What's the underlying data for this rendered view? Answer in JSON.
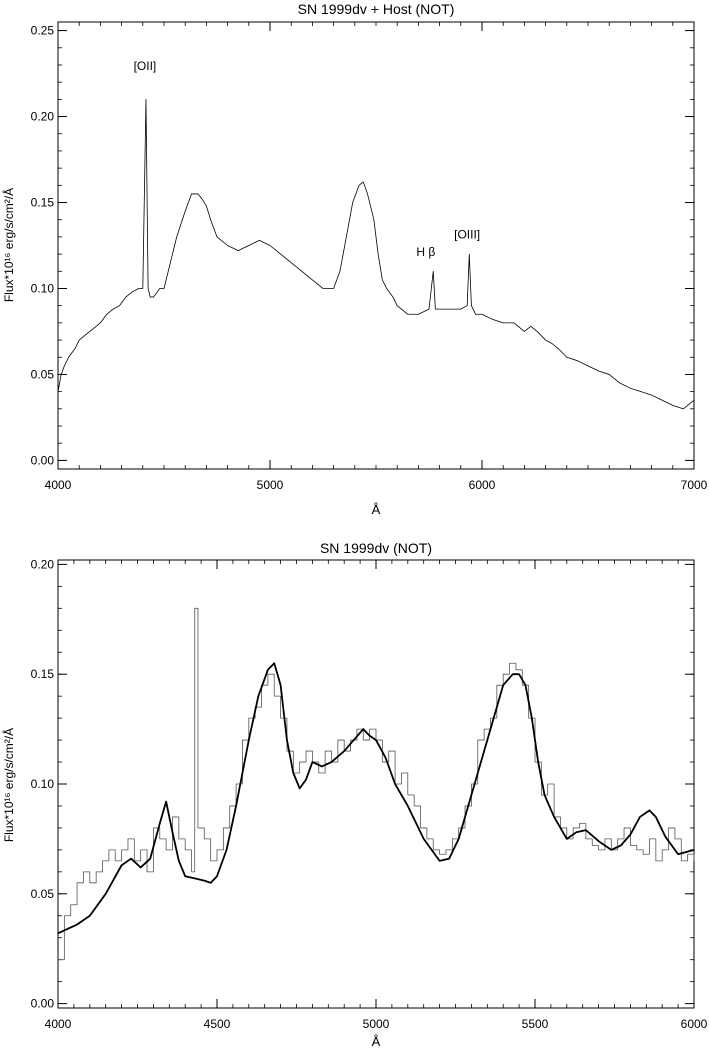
{
  "chart_data": [
    {
      "type": "line",
      "title": "SN 1999dv + Host (NOT)",
      "xlabel": "Å",
      "ylabel": "Flux*10¹⁶ erg/s/cm²/Å",
      "xlim": [
        4000,
        7000
      ],
      "ylim": [
        -0.005,
        0.255
      ],
      "xticks": [
        4000,
        5000,
        6000,
        7000
      ],
      "xtick_labels": [
        "4000",
        "5000",
        "6000",
        "7000"
      ],
      "yticks": [
        0.0,
        0.05,
        0.1,
        0.15,
        0.2,
        0.25
      ],
      "ytick_labels": [
        "0.00",
        "0.05",
        "0.10",
        "0.15",
        "0.20",
        "0.25"
      ],
      "grid": false,
      "annotations": [
        {
          "text": "[OII]",
          "x": 4410,
          "y": 0.227
        },
        {
          "text": "H β",
          "x": 5735,
          "y": 0.119
        },
        {
          "text": "[OIII]",
          "x": 5930,
          "y": 0.129
        }
      ],
      "series": [
        {
          "style": "thin-noisy",
          "x": [
            4000,
            4015,
            4030,
            4050,
            4080,
            4100,
            4120,
            4150,
            4180,
            4200,
            4230,
            4260,
            4290,
            4320,
            4350,
            4380,
            4400,
            4415,
            4425,
            4435,
            4450,
            4480,
            4500,
            4530,
            4560,
            4600,
            4630,
            4660,
            4680,
            4700,
            4720,
            4750,
            4800,
            4850,
            4900,
            4950,
            5000,
            5050,
            5100,
            5150,
            5200,
            5250,
            5300,
            5330,
            5360,
            5390,
            5420,
            5440,
            5460,
            5490,
            5510,
            5530,
            5550,
            5580,
            5600,
            5650,
            5700,
            5750,
            5770,
            5780,
            5800,
            5850,
            5900,
            5930,
            5940,
            5950,
            5970,
            6000,
            6050,
            6100,
            6150,
            6200,
            6230,
            6260,
            6300,
            6330,
            6360,
            6400,
            6450,
            6500,
            6550,
            6600,
            6650,
            6700,
            6750,
            6800,
            6850,
            6900,
            6950,
            7000
          ],
          "y": [
            0.04,
            0.05,
            0.055,
            0.06,
            0.065,
            0.07,
            0.072,
            0.075,
            0.078,
            0.08,
            0.085,
            0.088,
            0.09,
            0.095,
            0.098,
            0.1,
            0.1,
            0.21,
            0.1,
            0.095,
            0.095,
            0.1,
            0.1,
            0.115,
            0.13,
            0.145,
            0.155,
            0.155,
            0.152,
            0.148,
            0.14,
            0.13,
            0.125,
            0.122,
            0.125,
            0.128,
            0.125,
            0.12,
            0.115,
            0.11,
            0.105,
            0.1,
            0.1,
            0.11,
            0.13,
            0.15,
            0.16,
            0.162,
            0.155,
            0.14,
            0.12,
            0.105,
            0.1,
            0.095,
            0.09,
            0.085,
            0.085,
            0.088,
            0.11,
            0.088,
            0.088,
            0.088,
            0.088,
            0.09,
            0.12,
            0.09,
            0.085,
            0.085,
            0.082,
            0.08,
            0.08,
            0.075,
            0.078,
            0.075,
            0.07,
            0.068,
            0.065,
            0.06,
            0.058,
            0.055,
            0.052,
            0.05,
            0.045,
            0.042,
            0.04,
            0.038,
            0.035,
            0.032,
            0.03,
            0.035
          ]
        }
      ]
    },
    {
      "type": "line",
      "title": "SN 1999dv (NOT)",
      "xlabel": "Å",
      "ylabel": "Flux*10¹⁶ erg/s/cm²/Å",
      "xlim": [
        4000,
        6000
      ],
      "ylim": [
        -0.002,
        0.202
      ],
      "xticks": [
        4000,
        4500,
        5000,
        5500,
        6000
      ],
      "xtick_labels": [
        "4000",
        "4500",
        "5000",
        "5500",
        "6000"
      ],
      "yticks": [
        0.0,
        0.05,
        0.1,
        0.15,
        0.2
      ],
      "ytick_labels": [
        "0.00",
        "0.05",
        "0.10",
        "0.15",
        "0.20"
      ],
      "grid": false,
      "series": [
        {
          "style": "thin-histogram",
          "x": [
            4000,
            4020,
            4040,
            4060,
            4080,
            4100,
            4120,
            4140,
            4160,
            4180,
            4200,
            4220,
            4240,
            4260,
            4280,
            4300,
            4320,
            4340,
            4360,
            4380,
            4400,
            4420,
            4430,
            4440,
            4460,
            4480,
            4500,
            4520,
            4540,
            4560,
            4580,
            4600,
            4620,
            4640,
            4660,
            4680,
            4700,
            4720,
            4740,
            4760,
            4780,
            4800,
            4820,
            4840,
            4860,
            4880,
            4900,
            4920,
            4940,
            4960,
            4980,
            5000,
            5020,
            5040,
            5060,
            5080,
            5100,
            5120,
            5140,
            5160,
            5180,
            5200,
            5220,
            5240,
            5260,
            5280,
            5300,
            5320,
            5340,
            5360,
            5380,
            5400,
            5420,
            5440,
            5460,
            5480,
            5500,
            5520,
            5540,
            5560,
            5580,
            5600,
            5620,
            5640,
            5660,
            5680,
            5700,
            5720,
            5740,
            5760,
            5780,
            5800,
            5820,
            5840,
            5860,
            5880,
            5900,
            5920,
            5940,
            5960,
            5980,
            6000
          ],
          "y": [
            0.02,
            0.04,
            0.045,
            0.055,
            0.06,
            0.055,
            0.06,
            0.065,
            0.07,
            0.065,
            0.07,
            0.075,
            0.065,
            0.07,
            0.06,
            0.08,
            0.075,
            0.07,
            0.085,
            0.075,
            0.07,
            0.06,
            0.18,
            0.08,
            0.075,
            0.065,
            0.07,
            0.08,
            0.09,
            0.1,
            0.12,
            0.13,
            0.135,
            0.145,
            0.15,
            0.14,
            0.13,
            0.115,
            0.105,
            0.11,
            0.115,
            0.11,
            0.105,
            0.115,
            0.11,
            0.12,
            0.115,
            0.12,
            0.125,
            0.12,
            0.125,
            0.12,
            0.11,
            0.115,
            0.1,
            0.105,
            0.095,
            0.09,
            0.08,
            0.075,
            0.07,
            0.068,
            0.07,
            0.075,
            0.08,
            0.09,
            0.1,
            0.12,
            0.125,
            0.13,
            0.145,
            0.15,
            0.155,
            0.152,
            0.145,
            0.13,
            0.11,
            0.095,
            0.1,
            0.085,
            0.08,
            0.075,
            0.08,
            0.082,
            0.075,
            0.072,
            0.07,
            0.075,
            0.07,
            0.075,
            0.08,
            0.072,
            0.07,
            0.068,
            0.075,
            0.065,
            0.07,
            0.08,
            0.075,
            0.065,
            0.068,
            0.065
          ]
        },
        {
          "style": "thick-smooth",
          "x": [
            4000,
            4030,
            4060,
            4100,
            4150,
            4200,
            4230,
            4260,
            4290,
            4320,
            4340,
            4360,
            4380,
            4400,
            4430,
            4460,
            4480,
            4500,
            4530,
            4560,
            4600,
            4630,
            4660,
            4680,
            4700,
            4720,
            4740,
            4760,
            4780,
            4800,
            4830,
            4860,
            4900,
            4930,
            4960,
            4980,
            5000,
            5030,
            5060,
            5100,
            5150,
            5200,
            5230,
            5260,
            5300,
            5350,
            5400,
            5430,
            5450,
            5470,
            5490,
            5510,
            5530,
            5560,
            5600,
            5630,
            5660,
            5700,
            5740,
            5770,
            5800,
            5830,
            5860,
            5880,
            5910,
            5950,
            6000
          ],
          "y": [
            0.032,
            0.034,
            0.036,
            0.04,
            0.05,
            0.063,
            0.066,
            0.062,
            0.066,
            0.082,
            0.092,
            0.078,
            0.065,
            0.058,
            0.057,
            0.056,
            0.055,
            0.058,
            0.07,
            0.09,
            0.12,
            0.14,
            0.152,
            0.155,
            0.145,
            0.12,
            0.105,
            0.098,
            0.102,
            0.11,
            0.108,
            0.11,
            0.115,
            0.12,
            0.125,
            0.122,
            0.12,
            0.112,
            0.1,
            0.09,
            0.075,
            0.065,
            0.066,
            0.075,
            0.095,
            0.12,
            0.145,
            0.15,
            0.15,
            0.145,
            0.13,
            0.11,
            0.095,
            0.085,
            0.075,
            0.078,
            0.079,
            0.074,
            0.07,
            0.072,
            0.077,
            0.085,
            0.088,
            0.085,
            0.076,
            0.068,
            0.07
          ]
        }
      ]
    }
  ]
}
